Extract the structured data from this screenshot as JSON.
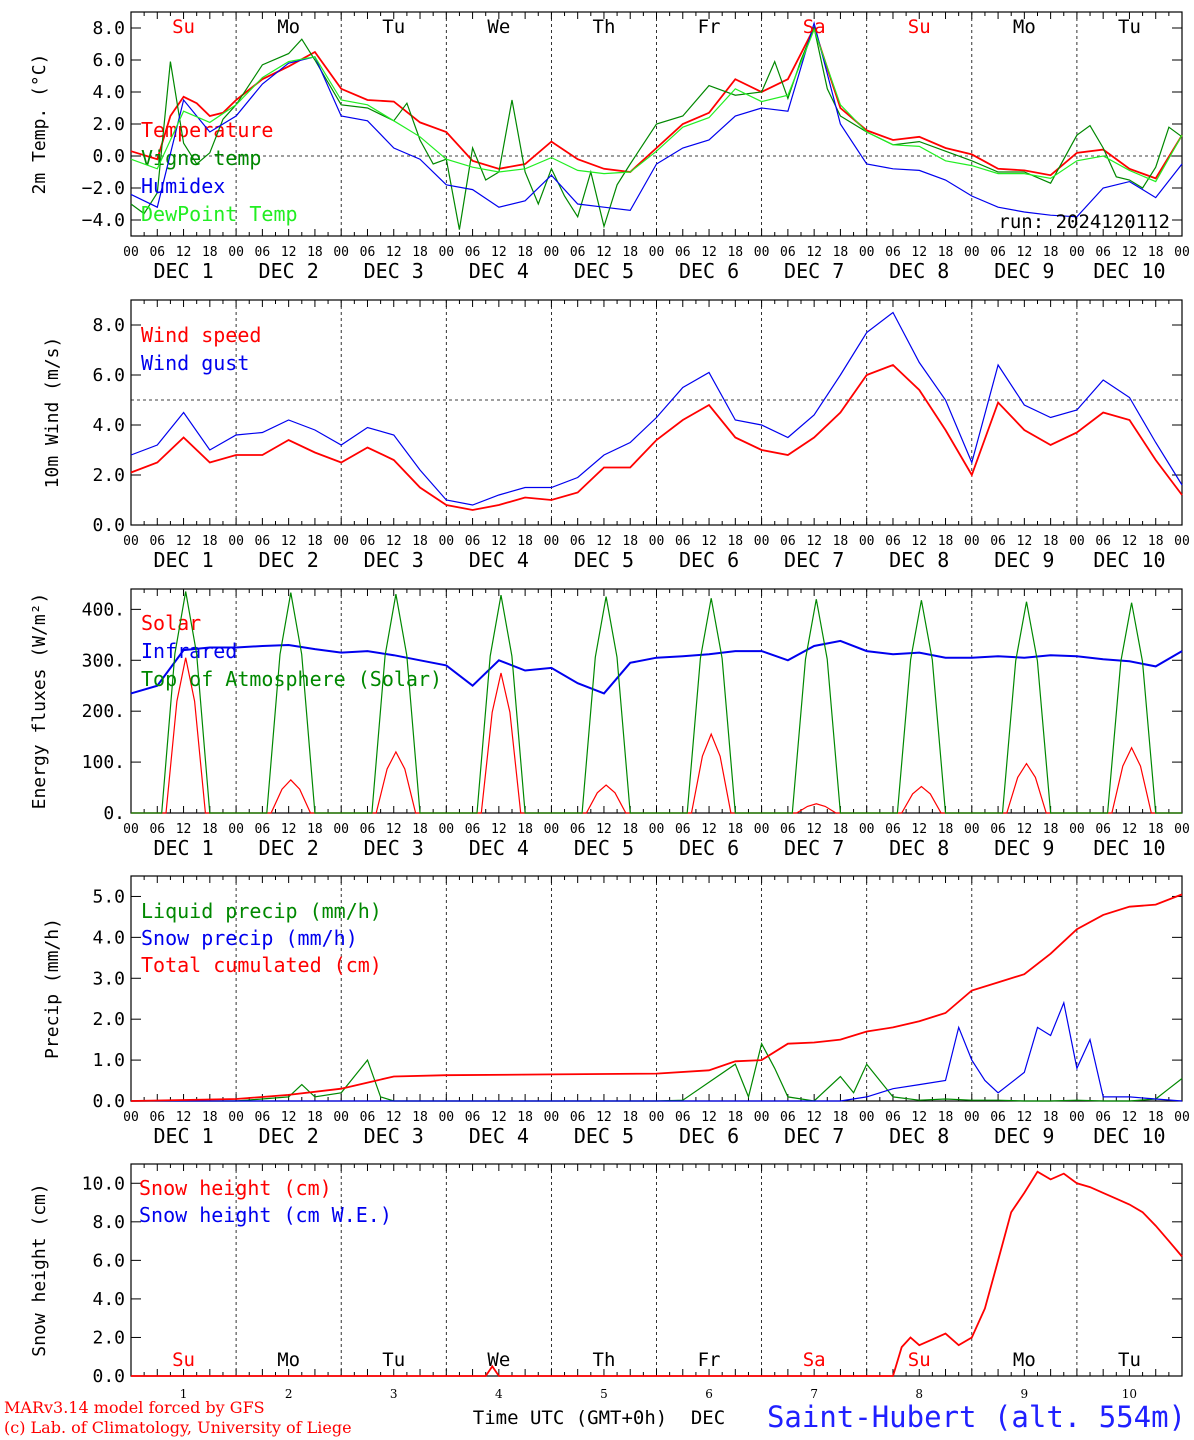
{
  "station": "Saint-Hubert (alt. 554m)",
  "credits": [
    "MARv3.14 model forced by GFS",
    "(c) Lab. of Climatology, University of Liege"
  ],
  "run_label": "run: 2024120112",
  "xaxis": {
    "hour_ticks": [
      "00",
      "06",
      "12",
      "18"
    ],
    "days": [
      "DEC 1",
      "DEC 2",
      "DEC 3",
      "DEC 4",
      "DEC 5",
      "DEC 6",
      "DEC 7",
      "DEC 8",
      "DEC 9",
      "DEC 10"
    ],
    "weekday_labels": [
      "Su",
      "Mo",
      "Tu",
      "We",
      "Th",
      "Fr",
      "Sa",
      "Su",
      "Mo",
      "Tu"
    ],
    "weekday_colors": [
      "#ff0000",
      "#000000",
      "#000000",
      "#000000",
      "#000000",
      "#000000",
      "#ff0000",
      "#ff0000",
      "#000000",
      "#000000"
    ],
    "bottom_day_numbers": [
      "1",
      "2",
      "3",
      "4",
      "5",
      "6",
      "7",
      "8",
      "9",
      "10"
    ],
    "bottom_title": "Time UTC (GMT+0h)",
    "bottom_month": "DEC"
  },
  "colors": {
    "red": "#ff0000",
    "green": "#008800",
    "blue": "#0000ee",
    "lightgreen": "#22ee22"
  },
  "chart_data": [
    {
      "id": "temp",
      "type": "line",
      "ylabel": "2m Temp. (°C)",
      "ylim": [
        -5,
        9
      ],
      "yticks": [
        -4,
        -2,
        0,
        2,
        4,
        6,
        8
      ],
      "ytick_labels": [
        "−4.0",
        "−2.0",
        "0.0",
        "2.0",
        "4.0",
        "6.0",
        "8.0"
      ],
      "ref_line": 0,
      "x_unit": "hours since DEC 1 00 UTC",
      "series": [
        {
          "name": "Temperature",
          "color": "#ff0000",
          "x": [
            0,
            6,
            9,
            12,
            15,
            18,
            21,
            24,
            30,
            36,
            42,
            48,
            54,
            60,
            66,
            72,
            78,
            84,
            90,
            96,
            102,
            108,
            114,
            120,
            126,
            132,
            138,
            144,
            150,
            156,
            162,
            168,
            174,
            180,
            186,
            192,
            198,
            204,
            210,
            216,
            222,
            228,
            234,
            240
          ],
          "y": [
            0.3,
            -0.2,
            2.5,
            3.7,
            3.3,
            2.5,
            2.7,
            3.5,
            4.8,
            5.6,
            6.5,
            4.2,
            3.5,
            3.4,
            2.1,
            1.5,
            -0.3,
            -0.8,
            -0.5,
            0.9,
            -0.2,
            -0.8,
            -1.0,
            0.5,
            2.0,
            2.7,
            4.8,
            4.0,
            4.8,
            8.0,
            3.0,
            1.6,
            1.0,
            1.2,
            0.5,
            0.1,
            -0.8,
            -0.9,
            -1.2,
            0.2,
            0.4,
            -0.8,
            -1.4,
            1.3
          ]
        },
        {
          "name": "Vigne temp",
          "color": "#008800",
          "x": [
            0,
            3,
            6,
            9,
            12,
            15,
            18,
            21,
            24,
            30,
            36,
            39,
            42,
            48,
            54,
            60,
            63,
            66,
            69,
            72,
            75,
            78,
            81,
            84,
            87,
            90,
            93,
            96,
            99,
            102,
            105,
            108,
            111,
            114,
            120,
            126,
            132,
            138,
            144,
            147,
            150,
            153,
            156,
            159,
            162,
            168,
            174,
            180,
            186,
            192,
            198,
            204,
            210,
            216,
            219,
            222,
            225,
            228,
            231,
            234,
            237,
            240
          ],
          "y": [
            -3.0,
            -3.6,
            -2.3,
            5.9,
            0.8,
            -0.5,
            0.2,
            2.3,
            3.2,
            5.7,
            6.4,
            7.3,
            6.0,
            3.2,
            3.0,
            2.2,
            3.3,
            1.0,
            -0.5,
            -0.2,
            -4.6,
            0.5,
            -1.5,
            -1.0,
            3.5,
            -1.0,
            -3.0,
            -0.8,
            -2.5,
            -3.8,
            -1.0,
            -4.4,
            -1.8,
            -0.5,
            2.0,
            2.5,
            4.4,
            3.8,
            4.0,
            5.9,
            3.6,
            6.0,
            8.0,
            4.2,
            2.5,
            1.5,
            0.7,
            0.9,
            0.3,
            -0.3,
            -1.0,
            -1.0,
            -1.7,
            1.3,
            1.9,
            0.5,
            -1.3,
            -1.5,
            -2.0,
            -0.7,
            1.8,
            1.2
          ]
        },
        {
          "name": "Humidex",
          "color": "#0000ee",
          "x": [
            0,
            6,
            12,
            18,
            24,
            30,
            36,
            42,
            48,
            54,
            60,
            66,
            72,
            78,
            84,
            90,
            96,
            102,
            108,
            114,
            120,
            126,
            132,
            138,
            144,
            150,
            156,
            162,
            168,
            174,
            180,
            186,
            192,
            198,
            204,
            210,
            216,
            222,
            228,
            234,
            240
          ],
          "y": [
            -2.4,
            -3.2,
            3.5,
            1.5,
            2.5,
            4.5,
            5.8,
            6.2,
            2.5,
            2.2,
            0.5,
            -0.2,
            -1.8,
            -2.1,
            -3.2,
            -2.8,
            -1.2,
            -3.0,
            -3.2,
            -3.4,
            -0.5,
            0.5,
            1.0,
            2.5,
            3.0,
            2.8,
            8.3,
            2.0,
            -0.5,
            -0.8,
            -0.9,
            -1.5,
            -2.5,
            -3.2,
            -3.5,
            -3.7,
            -3.8,
            -2.0,
            -1.6,
            -2.6,
            -0.5
          ]
        },
        {
          "name": "DewPoint Temp",
          "color": "#22ee22",
          "x": [
            0,
            6,
            12,
            18,
            24,
            30,
            36,
            42,
            48,
            54,
            60,
            66,
            72,
            78,
            84,
            90,
            96,
            102,
            108,
            114,
            120,
            126,
            132,
            138,
            144,
            150,
            156,
            162,
            168,
            174,
            180,
            186,
            192,
            198,
            204,
            210,
            216,
            222,
            228,
            234,
            240
          ],
          "y": [
            -0.2,
            -0.8,
            2.8,
            2.1,
            3.2,
            4.9,
            5.9,
            6.2,
            3.5,
            3.2,
            2.2,
            1.2,
            -0.2,
            -0.7,
            -1.0,
            -0.8,
            -0.1,
            -0.9,
            -1.1,
            -1.0,
            0.3,
            1.8,
            2.4,
            4.2,
            3.4,
            3.8,
            7.9,
            3.2,
            1.5,
            0.7,
            0.6,
            -0.3,
            -0.6,
            -1.1,
            -1.1,
            -1.4,
            -0.3,
            0.0,
            -0.9,
            -1.6,
            1.3
          ]
        }
      ]
    },
    {
      "id": "wind",
      "type": "line",
      "ylabel": "10m Wind (m/s)",
      "ylim": [
        0,
        9
      ],
      "yticks": [
        0,
        2,
        4,
        6,
        8
      ],
      "ytick_labels": [
        "0.0",
        "2.0",
        "4.0",
        "6.0",
        "8.0"
      ],
      "ref_line": 5,
      "series": [
        {
          "name": "Wind speed",
          "color": "#ff0000",
          "x": [
            0,
            6,
            12,
            18,
            24,
            30,
            36,
            42,
            48,
            54,
            60,
            66,
            72,
            78,
            84,
            90,
            96,
            102,
            108,
            114,
            120,
            126,
            132,
            138,
            144,
            150,
            156,
            162,
            168,
            174,
            180,
            186,
            192,
            198,
            204,
            210,
            216,
            222,
            228,
            234,
            240
          ],
          "y": [
            2.1,
            2.5,
            3.5,
            2.5,
            2.8,
            2.8,
            3.4,
            2.9,
            2.5,
            3.1,
            2.6,
            1.5,
            0.8,
            0.6,
            0.8,
            1.1,
            1.0,
            1.3,
            2.3,
            2.3,
            3.4,
            4.2,
            4.8,
            3.5,
            3.0,
            2.8,
            3.5,
            4.5,
            6.0,
            6.4,
            5.4,
            3.8,
            2.0,
            4.9,
            3.8,
            3.2,
            3.7,
            4.5,
            4.2,
            2.6,
            1.2
          ]
        },
        {
          "name": "Wind gust",
          "color": "#0000ee",
          "x": [
            0,
            6,
            12,
            18,
            24,
            30,
            36,
            42,
            48,
            54,
            60,
            66,
            72,
            78,
            84,
            90,
            96,
            102,
            108,
            114,
            120,
            126,
            132,
            138,
            144,
            150,
            156,
            162,
            168,
            174,
            180,
            186,
            192,
            198,
            204,
            210,
            216,
            222,
            228,
            234,
            240
          ],
          "y": [
            2.8,
            3.2,
            4.5,
            3.0,
            3.6,
            3.7,
            4.2,
            3.8,
            3.2,
            3.9,
            3.6,
            2.2,
            1.0,
            0.8,
            1.2,
            1.5,
            1.5,
            1.9,
            2.8,
            3.3,
            4.3,
            5.5,
            6.1,
            4.2,
            4.0,
            3.5,
            4.4,
            6.0,
            7.7,
            8.5,
            6.5,
            5.0,
            2.5,
            6.4,
            4.8,
            4.3,
            4.6,
            5.8,
            5.1,
            3.3,
            1.6
          ]
        }
      ]
    },
    {
      "id": "flux",
      "type": "line",
      "ylabel": "Energy fluxes (W/m²)",
      "ylim": [
        0,
        440
      ],
      "yticks": [
        0,
        100,
        200,
        300,
        400
      ],
      "ytick_labels": [
        "0.",
        "100.",
        "200.",
        "300.",
        "400."
      ],
      "series": [
        {
          "name": "Solar",
          "color": "#ff0000",
          "daily_peak_hour": 12.5,
          "daily_peak": [
            305,
            65,
            120,
            275,
            55,
            155,
            18,
            52,
            97,
            128
          ]
        },
        {
          "name": "Infrared",
          "color": "#0000ee",
          "x": [
            0,
            6,
            12,
            18,
            24,
            30,
            36,
            42,
            48,
            54,
            60,
            66,
            72,
            78,
            84,
            90,
            96,
            102,
            108,
            114,
            120,
            126,
            132,
            138,
            144,
            150,
            156,
            162,
            168,
            174,
            180,
            186,
            192,
            198,
            204,
            210,
            216,
            222,
            228,
            234,
            240
          ],
          "y": [
            235,
            250,
            320,
            325,
            325,
            328,
            330,
            322,
            315,
            318,
            310,
            300,
            290,
            250,
            300,
            280,
            285,
            255,
            235,
            295,
            305,
            308,
            312,
            318,
            318,
            300,
            328,
            338,
            318,
            312,
            315,
            305,
            305,
            308,
            305,
            310,
            308,
            302,
            298,
            288,
            318
          ]
        },
        {
          "name": "Top of Atmosphere (Solar)",
          "color": "#008800",
          "daily_peak_hour": 12.5,
          "daily_peak": [
            435,
            433,
            430,
            428,
            425,
            422,
            420,
            418,
            415,
            413
          ]
        }
      ]
    },
    {
      "id": "precip",
      "type": "line",
      "ylabel": "Precip (mm/h)",
      "ylim": [
        0,
        5.5
      ],
      "yticks": [
        0,
        1,
        2,
        3,
        4,
        5
      ],
      "ytick_labels": [
        "0.0",
        "1.0",
        "2.0",
        "3.0",
        "4.0",
        "5.0"
      ],
      "series": [
        {
          "name": "Liquid precip (mm/h)",
          "color": "#008800",
          "x": [
            0,
            24,
            36,
            39,
            42,
            48,
            51,
            54,
            57,
            60,
            96,
            114,
            120,
            126,
            138,
            141,
            144,
            147,
            150,
            156,
            162,
            165,
            168,
            174,
            180,
            186,
            192,
            198,
            204,
            210,
            216,
            222,
            228,
            234,
            237,
            240
          ],
          "y": [
            0,
            0,
            0.1,
            0.4,
            0.1,
            0.2,
            0.6,
            1.0,
            0.1,
            0,
            0,
            0,
            0,
            0.02,
            0.9,
            0.1,
            1.4,
            0.8,
            0.1,
            0,
            0.6,
            0.2,
            0.9,
            0.1,
            0.02,
            0.05,
            0.02,
            0.02,
            0,
            0,
            0.02,
            0,
            0,
            0.05,
            0.3,
            0.55
          ]
        },
        {
          "name": "Snow precip (mm/h)",
          "color": "#0000ee",
          "x": [
            0,
            162,
            168,
            174,
            180,
            186,
            189,
            192,
            195,
            198,
            204,
            207,
            210,
            213,
            216,
            219,
            222,
            228,
            234,
            240
          ],
          "y": [
            0,
            0,
            0.1,
            0.3,
            0.4,
            0.5,
            1.8,
            1.0,
            0.5,
            0.2,
            0.7,
            1.8,
            1.6,
            2.4,
            0.8,
            1.5,
            0.1,
            0.1,
            0.05,
            0
          ]
        },
        {
          "name": "Total cumulated (cm)",
          "color": "#ff0000",
          "x": [
            0,
            24,
            36,
            48,
            54,
            60,
            72,
            96,
            120,
            132,
            138,
            144,
            150,
            156,
            162,
            168,
            174,
            180,
            186,
            192,
            198,
            204,
            210,
            216,
            222,
            228,
            234,
            240
          ],
          "y": [
            0,
            0.05,
            0.15,
            0.3,
            0.45,
            0.6,
            0.63,
            0.65,
            0.67,
            0.75,
            0.97,
            1.0,
            1.4,
            1.43,
            1.5,
            1.7,
            1.8,
            1.95,
            2.15,
            2.7,
            2.9,
            3.1,
            3.6,
            4.2,
            4.55,
            4.75,
            4.8,
            5.05
          ]
        }
      ]
    },
    {
      "id": "snow",
      "type": "line",
      "ylabel": "Snow height (cm)",
      "ylim": [
        0,
        11
      ],
      "yticks": [
        0,
        2,
        4,
        6,
        8,
        10
      ],
      "ytick_labels": [
        "0.0",
        "2.0",
        "4.0",
        "6.0",
        "8.0",
        "10.0"
      ],
      "series": [
        {
          "name": "Snow height (cm)",
          "color": "#ff0000",
          "x": [
            0,
            81,
            82.5,
            84,
            174,
            176,
            178,
            180,
            183,
            186,
            189,
            192,
            195,
            198,
            201,
            204,
            207,
            210,
            213,
            216,
            219,
            222,
            225,
            228,
            231,
            234,
            237,
            240
          ],
          "y": [
            0,
            0,
            0.5,
            0,
            0,
            1.5,
            2.0,
            1.6,
            1.9,
            2.2,
            1.6,
            2.0,
            3.5,
            6.0,
            8.5,
            9.5,
            10.6,
            10.2,
            10.5,
            10.0,
            9.8,
            9.5,
            9.2,
            8.9,
            8.5,
            7.8,
            7.0,
            6.2
          ]
        },
        {
          "name": "Snow height (cm W.E.)",
          "color": "#0000ee",
          "x": [],
          "y": []
        }
      ]
    }
  ]
}
